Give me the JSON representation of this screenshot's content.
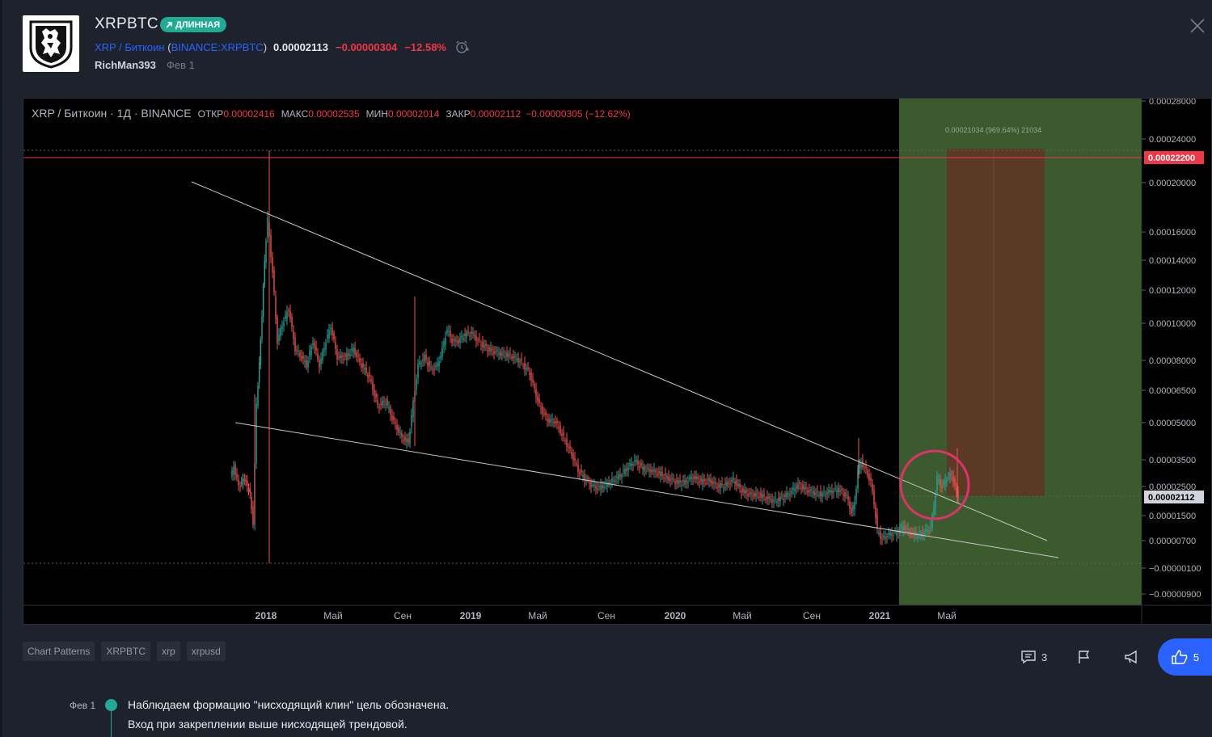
{
  "header": {
    "title": "XRPBTC",
    "badge": "ДЛИННАЯ",
    "symbol_name": "XRP / Биткоин",
    "exchange_symbol": "BINANCE:XRPBTC",
    "price": "0.00002113",
    "change": "−0.00000304",
    "change_pct": "−12.58%",
    "author": "RichMan393",
    "date": "Фев 1"
  },
  "chart": {
    "legend_title": "XRP / Биткоин · 1Д · BINANCE",
    "open_label": "ОТКР",
    "open": "0.00002416",
    "high_label": "МАКС",
    "high": "0.00002535",
    "low_label": "МИН",
    "low": "0.00002014",
    "close_label": "ЗАКР",
    "close": "0.00002112",
    "change": "−0.00000305 (−12.62%)",
    "projection_label": "0.00021034 (969.64%) 21034",
    "price_axis": [
      "0.00028000",
      "0.00024000",
      "0.00020000",
      "0.00016000",
      "0.00014000",
      "0.00012000",
      "0.00010000",
      "0.00008000",
      "0.00006500",
      "0.00005000",
      "0.00003500",
      "0.00002500",
      "0.00001500",
      "0.00000700",
      "−0.00000100",
      "−0.00000900"
    ],
    "target_price": "0.00022200",
    "current_price": "0.00002112",
    "time_axis": [
      "2018",
      "Май",
      "Сен",
      "2019",
      "Май",
      "Сен",
      "2020",
      "Май",
      "Сен",
      "2021",
      "Май"
    ],
    "colors": {
      "up": "#26a69a",
      "down": "#ef5350",
      "target": "#f23645",
      "green_zone": "#3b5a2e",
      "orange_zone": "#5a3a24"
    }
  },
  "tags": [
    "Chart Patterns",
    "XRPBTC",
    "xrp",
    "xrpusd"
  ],
  "actions": {
    "comments": "3",
    "likes": "5"
  },
  "update": {
    "date": "Фев 1",
    "line1": "Наблюдаем формацию \"нисходящий клин\" цель обозначена.",
    "line2": "Вход при закреплении выше нисходящей трендовой."
  }
}
